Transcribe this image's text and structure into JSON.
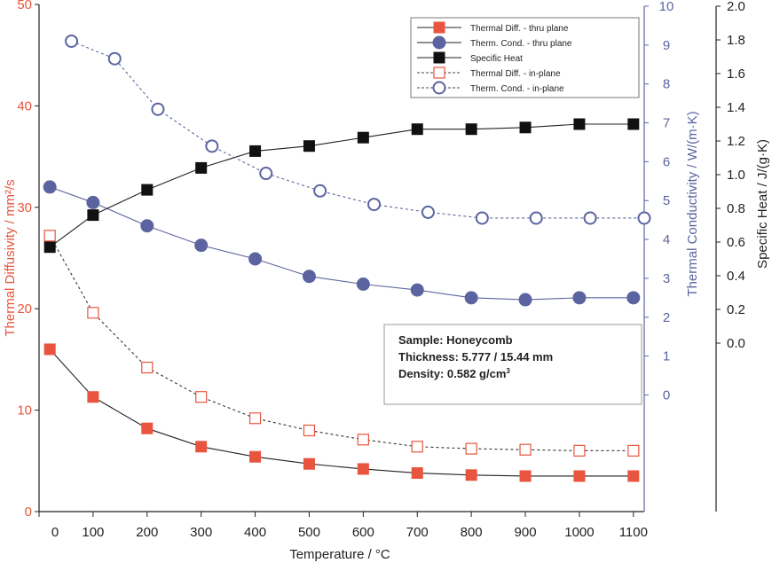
{
  "colors": {
    "diffusivity": "#e8543d",
    "conductivity": "#5b64a0",
    "specific_heat": "#111111",
    "axis_black": "#222222"
  },
  "chart_data": {
    "type": "line",
    "xlabel": "Temperature / °C",
    "x_ticks": [
      "0",
      "100",
      "200",
      "300",
      "400",
      "500",
      "600",
      "700",
      "800",
      "900",
      "1000",
      "1100"
    ],
    "xlim": [
      0,
      1120
    ],
    "y_left": {
      "label": "Thermal Diffusivity / mm²/s",
      "ticks": [
        "0",
        "10",
        "20",
        "30",
        "40",
        "50"
      ],
      "ylim": [
        0,
        50
      ]
    },
    "y_mid": {
      "label": "Thermal Conductivity / W/(m·K)",
      "ticks": [
        "0",
        "1",
        "2",
        "3",
        "4",
        "5",
        "6",
        "7",
        "8",
        "9",
        "10"
      ],
      "ylim": [
        -3.0,
        10
      ]
    },
    "y_right": {
      "label": "Specific Heat / J/(g·K)",
      "ticks": [
        "0.0",
        "0.2",
        "0.4",
        "0.6",
        "0.8",
        "1.0",
        "1.2",
        "1.4",
        "1.6",
        "1.8",
        "2.0"
      ],
      "ylim": [
        -1.0,
        2.0
      ]
    },
    "series": [
      {
        "name": "Thermal Diff. - thru plane",
        "axis": "left",
        "marker": "square-filled",
        "line": "solid",
        "color": "#e8543d",
        "x": [
          20,
          100,
          200,
          300,
          400,
          500,
          600,
          700,
          800,
          900,
          1000,
          1100
        ],
        "y": [
          16.0,
          11.3,
          8.2,
          6.4,
          5.4,
          4.7,
          4.2,
          3.8,
          3.6,
          3.5,
          3.5,
          3.5
        ]
      },
      {
        "name": "Therm. Cond. - thru plane",
        "axis": "mid",
        "marker": "circle-filled",
        "line": "solid",
        "color": "#5b64a0",
        "x": [
          20,
          100,
          200,
          300,
          400,
          500,
          600,
          700,
          800,
          900,
          1000,
          1100
        ],
        "y": [
          5.35,
          4.95,
          4.35,
          3.85,
          3.5,
          3.05,
          2.85,
          2.7,
          2.5,
          2.45,
          2.5,
          2.5
        ]
      },
      {
        "name": "Specific Heat",
        "axis": "right",
        "marker": "square-filled",
        "line": "solid",
        "color": "#111111",
        "x": [
          20,
          100,
          200,
          300,
          400,
          500,
          600,
          700,
          800,
          900,
          1000,
          1100
        ],
        "y": [
          0.57,
          0.76,
          0.91,
          1.04,
          1.14,
          1.17,
          1.22,
          1.27,
          1.27,
          1.28,
          1.3,
          1.3
        ]
      },
      {
        "name": "Thermal Diff. - in-plane",
        "axis": "left",
        "marker": "square-open",
        "line": "dashed",
        "color": "#e8543d",
        "x": [
          20,
          100,
          200,
          300,
          400,
          500,
          600,
          700,
          800,
          900,
          1000,
          1100
        ],
        "y": [
          27.2,
          19.6,
          14.2,
          11.3,
          9.2,
          8.0,
          7.1,
          6.4,
          6.2,
          6.1,
          6.0,
          6.0
        ]
      },
      {
        "name": "Therm. Cond. - in-plane",
        "axis": "mid",
        "marker": "circle-open",
        "line": "dashed",
        "color": "#5b64a0",
        "x": [
          60,
          140,
          220,
          320,
          420,
          520,
          620,
          720,
          820,
          920,
          1020,
          1120
        ],
        "y": [
          9.1,
          8.65,
          7.35,
          6.4,
          5.7,
          5.25,
          4.9,
          4.7,
          4.55,
          4.55,
          4.55,
          4.55
        ]
      }
    ],
    "legend": {
      "position": "top-right",
      "entries": [
        "Thermal Diff. - thru plane",
        "Therm. Cond. - thru plane",
        "Specific Heat",
        "Thermal Diff. - in-plane",
        "Therm. Cond. - in-plane"
      ]
    },
    "annotation": {
      "line1": "Sample: Honeycomb",
      "line2": "Thickness: 5.777 / 15.44 mm",
      "line3_prefix": "Density: 0.582 g/cm",
      "line3_sup": "3"
    },
    "grid": false
  }
}
